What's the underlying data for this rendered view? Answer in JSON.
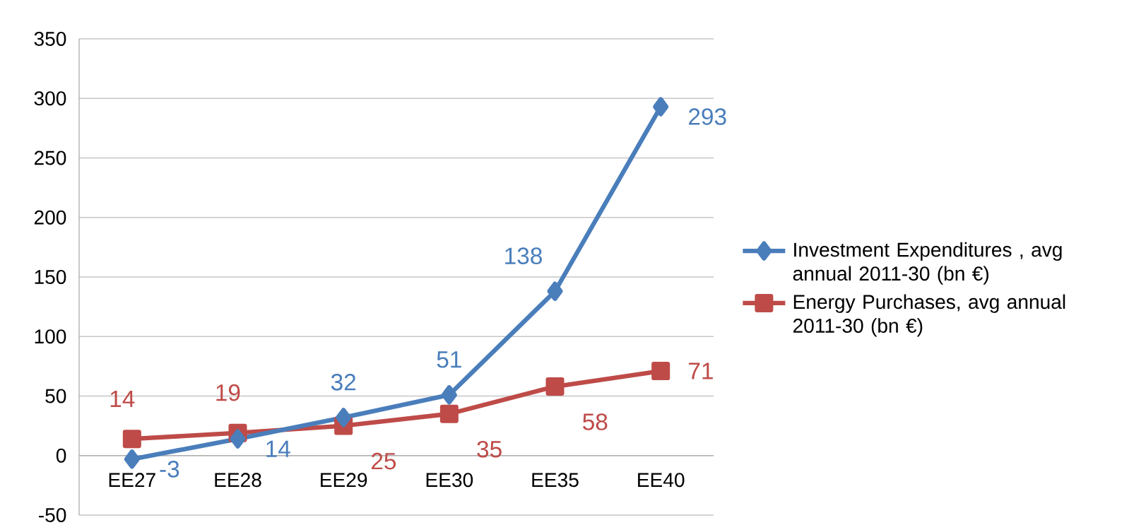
{
  "chart_data": {
    "type": "line",
    "categories": [
      "EE27",
      "EE28",
      "EE29",
      "EE30",
      "EE35",
      "EE40"
    ],
    "series": [
      {
        "name": "Investment Expenditures , avg annual 2011-30 (bn €)",
        "color": "#4a7ebb",
        "marker": "diamond",
        "values": [
          -3,
          14,
          32,
          51,
          138,
          293
        ]
      },
      {
        "name": "Energy Purchases, avg annual 2011-30 (bn €)",
        "color": "#be4b48",
        "marker": "square",
        "values": [
          14,
          19,
          25,
          35,
          58,
          71
        ]
      }
    ],
    "ylim": [
      -50,
      350
    ],
    "yticks": [
      -50,
      0,
      50,
      100,
      150,
      200,
      250,
      300,
      350
    ],
    "grid": "y",
    "legend": "right",
    "data_labels": true
  }
}
